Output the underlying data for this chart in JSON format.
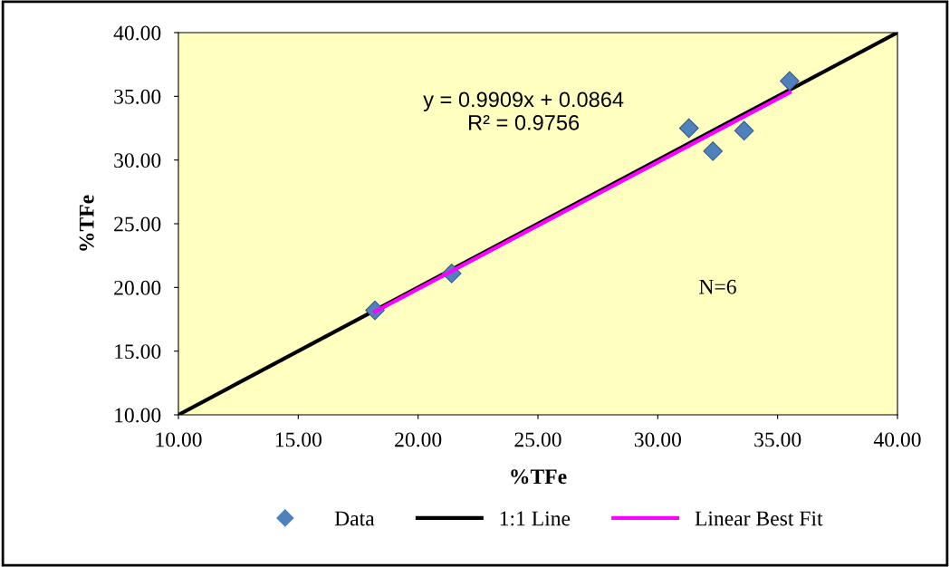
{
  "chart_data": {
    "type": "scatter",
    "xlabel": "%TFe",
    "ylabel": "%TFe",
    "xlim": [
      10,
      40
    ],
    "ylim": [
      10,
      40
    ],
    "xticks": [
      {
        "value": 10,
        "label": "10.00"
      },
      {
        "value": 15,
        "label": "15.00"
      },
      {
        "value": 20,
        "label": "20.00"
      },
      {
        "value": 25,
        "label": "25.00"
      },
      {
        "value": 30,
        "label": "30.00"
      },
      {
        "value": 35,
        "label": "35.00"
      },
      {
        "value": 40,
        "label": "40.00"
      }
    ],
    "yticks": [
      {
        "value": 10,
        "label": "10.00"
      },
      {
        "value": 15,
        "label": "15.00"
      },
      {
        "value": 20,
        "label": "20.00"
      },
      {
        "value": 25,
        "label": "25.00"
      },
      {
        "value": 30,
        "label": "30.00"
      },
      {
        "value": 35,
        "label": "35.00"
      },
      {
        "value": 40,
        "label": "40.00"
      }
    ],
    "series": [
      {
        "name": "Data",
        "color": "#4f81bd",
        "marker": "diamond",
        "x": [
          18.2,
          21.4,
          31.3,
          32.3,
          33.6,
          35.5
        ],
        "values": [
          18.2,
          21.1,
          32.5,
          30.7,
          32.3,
          36.2
        ]
      },
      {
        "name": "1:1 Line",
        "type": "line",
        "color": "#000000",
        "x": [
          10,
          40
        ],
        "values": [
          10,
          40
        ]
      },
      {
        "name": "Linear Best Fit",
        "type": "line",
        "color": "#ff00ff",
        "x": [
          18.2,
          35.5
        ],
        "values": [
          18.1,
          35.3
        ]
      }
    ],
    "annotations": [
      "y = 0.9909x + 0.0864\nR² = 0.9756",
      "N=6"
    ],
    "legend": "bottom",
    "grid": false
  }
}
